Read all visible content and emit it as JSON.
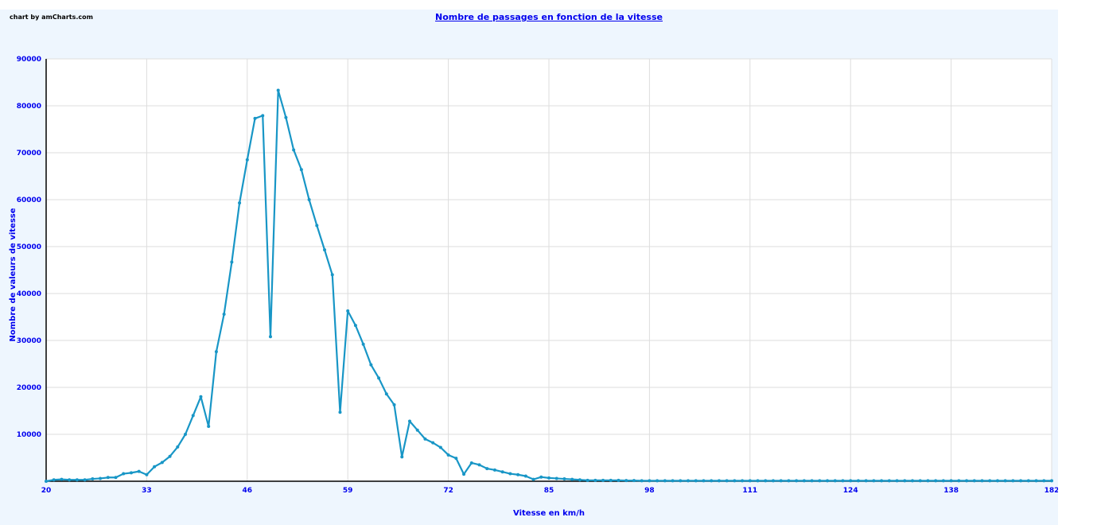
{
  "credit": "chart by amCharts.com",
  "chart_data": {
    "type": "line",
    "title": "Nombre de passages en fonction de la vitesse",
    "xlabel": "Vitesse en km/h",
    "ylabel": "Nombre de valeurs de vitesse",
    "x_tick_labels": [
      "20",
      "33",
      "46",
      "59",
      "72",
      "85",
      "98",
      "111",
      "124",
      "138",
      "182"
    ],
    "ylim": [
      0,
      90000
    ],
    "y_ticks": [
      10000,
      20000,
      30000,
      40000,
      50000,
      60000,
      70000,
      80000,
      90000
    ],
    "grid": true,
    "line_color": "#1896c6",
    "label_color": "#0000ee",
    "series": [
      {
        "values": [
          0,
          300,
          400,
          300,
          300,
          300,
          500,
          600,
          800,
          800,
          1600,
          1800,
          2100,
          1400,
          3100,
          4000,
          5300,
          7300,
          10000,
          14000,
          18000,
          11700,
          27600,
          35600,
          46700,
          59300,
          68500,
          77300,
          77900,
          30800,
          83300,
          77500,
          70600,
          66400,
          60000,
          54500,
          49300,
          44000,
          14700,
          36300,
          33200,
          29200,
          24800,
          22000,
          18600,
          16300,
          5200,
          12800,
          10900,
          9000,
          8200,
          7200,
          5600,
          4900,
          1500,
          3900,
          3500,
          2700,
          2400,
          2000,
          1600,
          1400,
          1100,
          400,
          900,
          700,
          600,
          500,
          400,
          300,
          200,
          200,
          200,
          200,
          200,
          150,
          150,
          100,
          100,
          100,
          100,
          100,
          100,
          100,
          100,
          100,
          100,
          100,
          100,
          100,
          100,
          100,
          100,
          100,
          100,
          100,
          100,
          100,
          100,
          100,
          100,
          100,
          100,
          100,
          100,
          100,
          100,
          100,
          100,
          100,
          100,
          100,
          100,
          100,
          100,
          100,
          100,
          100,
          100,
          100,
          100,
          100,
          100,
          100,
          100,
          100,
          100,
          100,
          100,
          100,
          100
        ]
      }
    ]
  }
}
